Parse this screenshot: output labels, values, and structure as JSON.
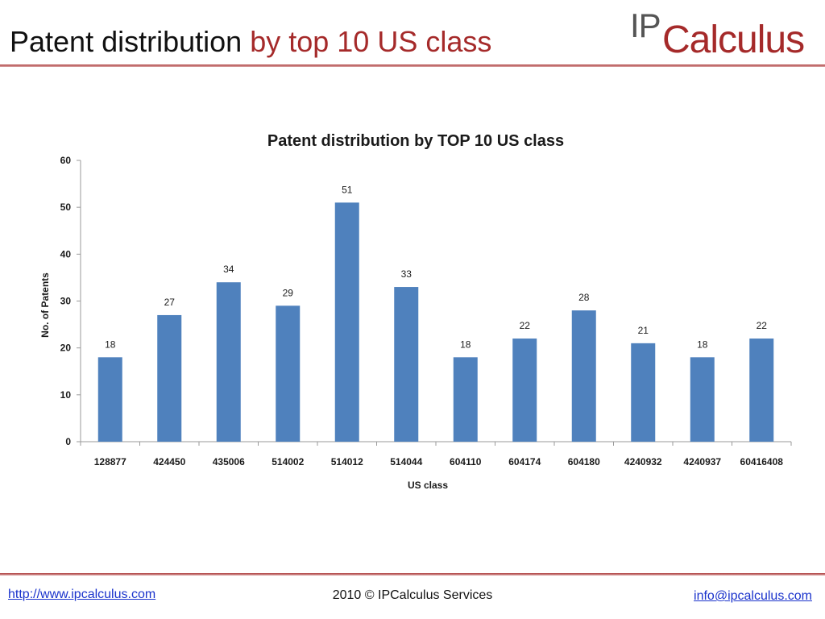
{
  "slide": {
    "title_main": "Patent distribution",
    "title_accent": "by top 10 US class"
  },
  "logo": {
    "ip": "IP",
    "rest": "Calculus"
  },
  "footer": {
    "left_link": "http://www.ipcalculus.com",
    "center_text": "2010 © IPCalculus Services",
    "right_link": "info@ipcalculus.com"
  },
  "colors": {
    "bar": "#4f81bd",
    "accent": "#a52a2a",
    "rule": "#c0504d"
  },
  "chart_data": {
    "type": "bar",
    "title": "Patent distribution by TOP 10 US class",
    "xlabel": "US class",
    "ylabel": "No. of Patents",
    "categories": [
      "128877",
      "424450",
      "435006",
      "514002",
      "514012",
      "514044",
      "604110",
      "604174",
      "604180",
      "4240932",
      "4240937",
      "60416408"
    ],
    "values": [
      18,
      27,
      34,
      29,
      51,
      33,
      18,
      22,
      28,
      21,
      18,
      22
    ],
    "ylim": [
      0,
      60
    ],
    "yticks": [
      0,
      10,
      20,
      30,
      40,
      50,
      60
    ],
    "grid": false,
    "legend": "none"
  }
}
